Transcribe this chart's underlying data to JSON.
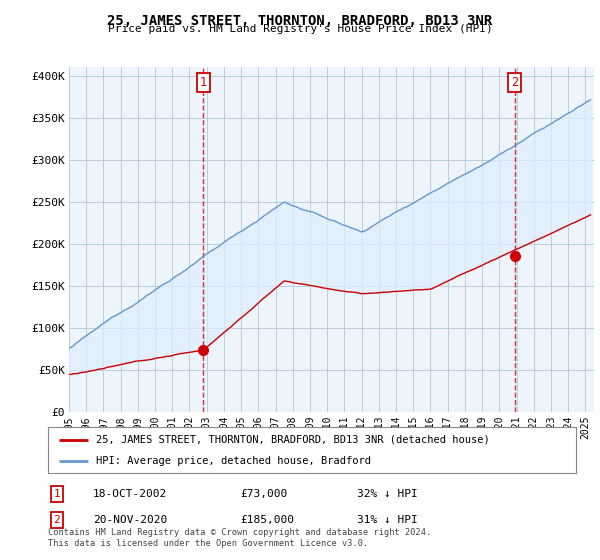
{
  "title": "25, JAMES STREET, THORNTON, BRADFORD, BD13 3NR",
  "subtitle": "Price paid vs. HM Land Registry's House Price Index (HPI)",
  "ylabel_ticks": [
    "£0",
    "£50K",
    "£100K",
    "£150K",
    "£200K",
    "£250K",
    "£300K",
    "£350K",
    "£400K"
  ],
  "ytick_values": [
    0,
    50000,
    100000,
    150000,
    200000,
    250000,
    300000,
    350000,
    400000
  ],
  "ylim": [
    0,
    410000
  ],
  "xlim_start": 1995.0,
  "xlim_end": 2025.5,
  "transaction1_x": 2002.8,
  "transaction1_y": 73000,
  "transaction2_x": 2020.9,
  "transaction2_y": 185000,
  "marker_color": "#cc0000",
  "hpi_color": "#6699cc",
  "fill_color": "#ddeeff",
  "legend_label_red": "25, JAMES STREET, THORNTON, BRADFORD, BD13 3NR (detached house)",
  "legend_label_blue": "HPI: Average price, detached house, Bradford",
  "note1_num": "1",
  "note1_date": "18-OCT-2002",
  "note1_price": "£73,000",
  "note1_hpi": "32% ↓ HPI",
  "note2_num": "2",
  "note2_date": "20-NOV-2020",
  "note2_price": "£185,000",
  "note2_hpi": "31% ↓ HPI",
  "footer": "Contains HM Land Registry data © Crown copyright and database right 2024.\nThis data is licensed under the Open Government Licence v3.0.",
  "bg_color": "#ffffff",
  "chart_bg_color": "#eef4fb",
  "grid_color": "#bbccdd",
  "xtick_years": [
    1995,
    1996,
    1997,
    1998,
    1999,
    2000,
    2001,
    2002,
    2003,
    2004,
    2005,
    2006,
    2007,
    2008,
    2009,
    2010,
    2011,
    2012,
    2013,
    2014,
    2015,
    2016,
    2017,
    2018,
    2019,
    2020,
    2021,
    2022,
    2023,
    2024,
    2025
  ]
}
